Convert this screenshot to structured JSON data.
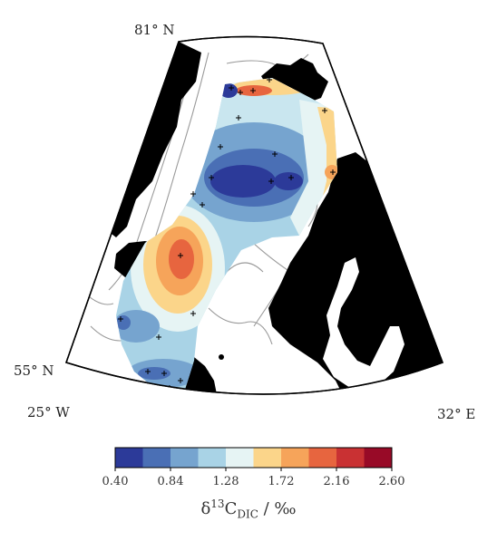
{
  "map": {
    "labels": {
      "lat_top": "81° N",
      "lat_left": "55° N",
      "lon_left": "25° W",
      "lon_right": "32° E"
    },
    "colorbar": {
      "colors": [
        "#2c3a99",
        "#4a6fb5",
        "#76a4cf",
        "#a9d3e6",
        "#e6f4f4",
        "#fbd58a",
        "#f6a45a",
        "#e7653f",
        "#c93133",
        "#980a27"
      ],
      "ticks": [
        "0.40",
        "0.84",
        "1.28",
        "1.72",
        "2.16",
        "2.60"
      ],
      "title_main": "δ",
      "title_sup": "13",
      "title_c": "C",
      "title_sub": "DIC",
      "title_unit": " / ‰"
    }
  }
}
